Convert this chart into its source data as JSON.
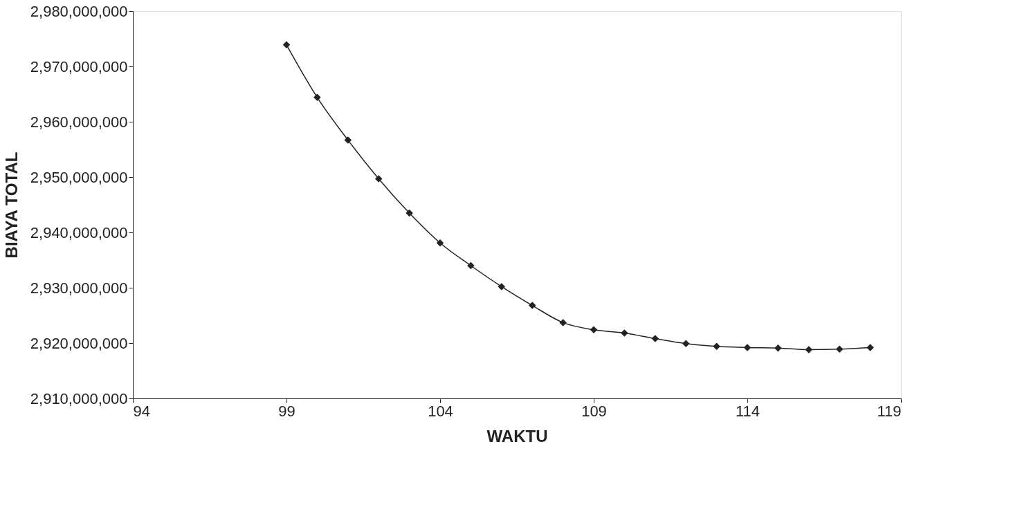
{
  "chart_data": {
    "type": "line",
    "xlabel": "WAKTU",
    "ylabel": "BIAYA TOTAL",
    "x": [
      99,
      100,
      101,
      102,
      103,
      104,
      105,
      106,
      107,
      108,
      109,
      110,
      111,
      112,
      113,
      114,
      115,
      116,
      117,
      118
    ],
    "series": [
      {
        "color": "#222222",
        "values": [
          2973900000,
          2964400000,
          2956700000,
          2949700000,
          2943500000,
          2938100000,
          2934000000,
          2930200000,
          2926800000,
          2923700000,
          2922400000,
          2921800000,
          2920800000,
          2919900000,
          2919400000,
          2919200000,
          2919100000,
          2918800000,
          2918900000,
          2919200000
        ]
      }
    ],
    "xlim": [
      94,
      119
    ],
    "xticks": [
      94,
      99,
      104,
      109,
      114,
      119
    ],
    "ylim": [
      2910000000,
      2980000000
    ],
    "yticks": [
      {
        "value": 2910000000,
        "label": "2,910,000,000"
      },
      {
        "value": 2920000000,
        "label": "2,920,000,000"
      },
      {
        "value": 2930000000,
        "label": "2,930,000,000"
      },
      {
        "value": 2940000000,
        "label": "2,940,000,000"
      },
      {
        "value": 2950000000,
        "label": "2,950,000,000"
      },
      {
        "value": 2960000000,
        "label": "2,960,000,000"
      },
      {
        "value": 2970000000,
        "label": "2,970,000,000"
      },
      {
        "value": 2980000000,
        "label": "2,980,000,000"
      }
    ],
    "grid": false,
    "marker": "diamond",
    "line_style": "solid"
  }
}
